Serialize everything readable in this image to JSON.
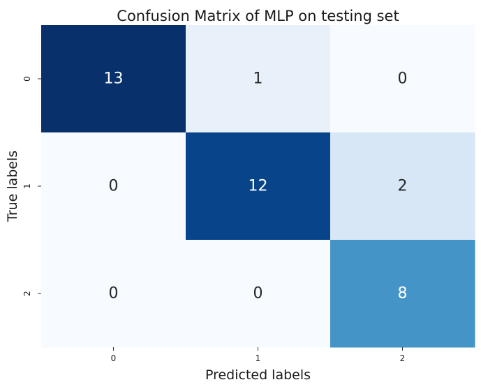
{
  "chart_data": {
    "type": "heatmap",
    "title": "Confusion Matrix of MLP on testing set",
    "xlabel": "Predicted labels",
    "ylabel": "True labels",
    "x_tick_labels": [
      "0",
      "1",
      "2"
    ],
    "y_tick_labels": [
      "0",
      "1",
      "2"
    ],
    "values": [
      [
        13,
        1,
        0
      ],
      [
        0,
        12,
        2
      ],
      [
        0,
        0,
        8
      ]
    ],
    "colormap": "Blues",
    "colorbar": false,
    "vmin": 0,
    "vmax": 13,
    "annotations": true
  }
}
